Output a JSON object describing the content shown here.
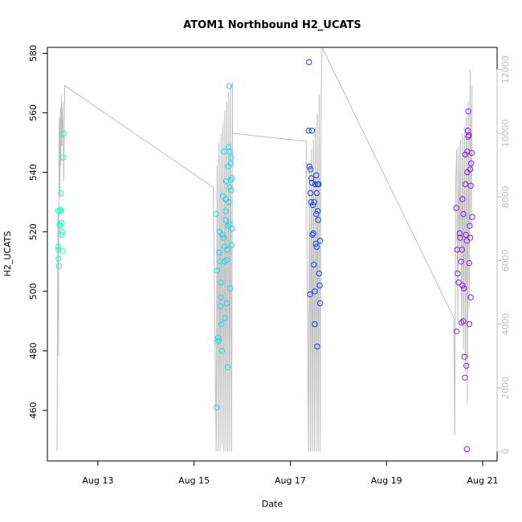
{
  "chart_data": {
    "type": "scatter",
    "title": "ATOM1 Northbound H2_UCATS",
    "xlabel": "Date",
    "ylabel": "H2_UCATS",
    "x_ticks": [
      "Aug 13",
      "Aug 15",
      "Aug 17",
      "Aug 19",
      "Aug 21"
    ],
    "x_tick_values": [
      13,
      15,
      17,
      19,
      21
    ],
    "xlim": [
      11.95,
      21.3
    ],
    "ylim": [
      443,
      582
    ],
    "y_ticks": [
      460,
      480,
      500,
      520,
      540,
      560,
      580
    ],
    "ylim_right": [
      -300,
      12700
    ],
    "y_ticks_right": [
      0,
      2000,
      4000,
      6000,
      8000,
      10000,
      12000
    ],
    "grid": false,
    "legend": "none",
    "colors": {
      "flight1": "#1affb8",
      "flight2": "#1ad7f0",
      "flight3": "#1a3ff0",
      "flight4": "#8a1af0",
      "altitude_line": "#bdbdbd",
      "frame": "#000000",
      "right_axis": "#bdbdbd"
    },
    "series": [
      {
        "color": "#1affb8",
        "points": [
          [
            12.17,
            527.0
          ],
          [
            12.18,
            514.0
          ],
          [
            12.18,
            511.0
          ],
          [
            12.19,
            508.5
          ],
          [
            12.18,
            515.0
          ],
          [
            12.2,
            522.5
          ],
          [
            12.21,
            527.0
          ],
          [
            12.22,
            522.0
          ],
          [
            12.22,
            527.5
          ],
          [
            12.23,
            533.0
          ],
          [
            12.24,
            527.0
          ],
          [
            12.25,
            519.0
          ],
          [
            12.25,
            523.0
          ],
          [
            12.26,
            520.0
          ],
          [
            12.27,
            513.5
          ],
          [
            12.28,
            545.0
          ],
          [
            12.29,
            553.0
          ]
        ]
      },
      {
        "color": "#1ad7f0",
        "points": [
          [
            15.46,
            526.0
          ],
          [
            15.47,
            461.0
          ],
          [
            15.48,
            507.0
          ],
          [
            15.49,
            483.0
          ],
          [
            15.5,
            484.5
          ],
          [
            15.51,
            483.5
          ],
          [
            15.52,
            513.0
          ],
          [
            15.53,
            520.0
          ],
          [
            15.54,
            510.0
          ],
          [
            15.55,
            495.0
          ],
          [
            15.56,
            498.0
          ],
          [
            15.56,
            503.0
          ],
          [
            15.57,
            489.0
          ],
          [
            15.58,
            480.0
          ],
          [
            15.59,
            519.0
          ],
          [
            15.6,
            532.0
          ],
          [
            15.61,
            518.0
          ],
          [
            15.62,
            547.0
          ],
          [
            15.63,
            510.0
          ],
          [
            15.64,
            491.0
          ],
          [
            15.64,
            515.0
          ],
          [
            15.65,
            524.0
          ],
          [
            15.66,
            531.0
          ],
          [
            15.66,
            527.0
          ],
          [
            15.67,
            537.0
          ],
          [
            15.68,
            496.0
          ],
          [
            15.68,
            510.5
          ],
          [
            15.69,
            514.0
          ],
          [
            15.7,
            474.5
          ],
          [
            15.7,
            522.0
          ],
          [
            15.71,
            542.0
          ],
          [
            15.72,
            548.5
          ],
          [
            15.72,
            530.0
          ],
          [
            15.73,
            569.0
          ],
          [
            15.73,
            535.0
          ],
          [
            15.74,
            522.5
          ],
          [
            15.74,
            547.0
          ],
          [
            15.75,
            501.0
          ],
          [
            15.76,
            537.5
          ],
          [
            15.76,
            543.0
          ],
          [
            15.77,
            534.0
          ],
          [
            15.77,
            545.0
          ],
          [
            15.78,
            515.5
          ],
          [
            15.79,
            521.0
          ],
          [
            15.79,
            538.0
          ]
        ]
      },
      {
        "color": "#1a3ff0",
        "points": [
          [
            17.38,
            554.0
          ],
          [
            17.39,
            577.0
          ],
          [
            17.4,
            542.0
          ],
          [
            17.41,
            499.0
          ],
          [
            17.42,
            533.0
          ],
          [
            17.42,
            541.0
          ],
          [
            17.43,
            530.0
          ],
          [
            17.44,
            538.0
          ],
          [
            17.45,
            536.5
          ],
          [
            17.45,
            554.0
          ],
          [
            17.46,
            519.0
          ],
          [
            17.47,
            529.0
          ],
          [
            17.48,
            519.5
          ],
          [
            17.49,
            509.0
          ],
          [
            17.5,
            530.0
          ],
          [
            17.51,
            489.0
          ],
          [
            17.51,
            500.0
          ],
          [
            17.52,
            536.0
          ],
          [
            17.53,
            516.0
          ],
          [
            17.54,
            539.0
          ],
          [
            17.54,
            526.0
          ],
          [
            17.55,
            533.0
          ],
          [
            17.55,
            515.0
          ],
          [
            17.56,
            481.5
          ],
          [
            17.57,
            527.0
          ],
          [
            17.57,
            536.0
          ],
          [
            17.58,
            524.0
          ],
          [
            17.59,
            536.0
          ],
          [
            17.6,
            506.0
          ],
          [
            17.61,
            502.0
          ],
          [
            17.62,
            517.0
          ],
          [
            17.62,
            496.0
          ]
        ]
      },
      {
        "color": "#8a1af0",
        "points": [
          [
            20.45,
            528.0
          ],
          [
            20.46,
            486.5
          ],
          [
            20.47,
            514.0
          ],
          [
            20.48,
            506.0
          ],
          [
            20.5,
            503.0
          ],
          [
            20.52,
            519.5
          ],
          [
            20.53,
            518.0
          ],
          [
            20.55,
            510.0
          ],
          [
            20.56,
            489.5
          ],
          [
            20.57,
            514.0
          ],
          [
            20.58,
            531.0
          ],
          [
            20.58,
            502.0
          ],
          [
            20.6,
            526.0
          ],
          [
            20.6,
            490.0
          ],
          [
            20.61,
            501.0
          ],
          [
            20.62,
            478.0
          ],
          [
            20.63,
            471.0
          ],
          [
            20.64,
            546.0
          ],
          [
            20.64,
            536.0
          ],
          [
            20.65,
            519.0
          ],
          [
            20.66,
            475.0
          ],
          [
            20.67,
            517.0
          ],
          [
            20.68,
            547.0
          ],
          [
            20.68,
            540.0
          ],
          [
            20.69,
            554.0
          ],
          [
            20.7,
            552.0
          ],
          [
            20.7,
            560.5
          ],
          [
            20.71,
            552.5
          ],
          [
            20.72,
            509.5
          ],
          [
            20.72,
            489.0
          ],
          [
            20.73,
            522.0
          ],
          [
            20.74,
            541.0
          ],
          [
            20.74,
            518.0
          ],
          [
            20.75,
            498.0
          ],
          [
            20.75,
            535.5
          ],
          [
            20.76,
            543.0
          ],
          [
            20.77,
            546.5
          ],
          [
            20.78,
            525.0
          ],
          [
            20.67,
            447.0
          ]
        ]
      }
    ],
    "altitude_line": {
      "axis": "right",
      "points": [
        [
          12.15,
          0
        ],
        [
          12.16,
          4500
        ],
        [
          12.17,
          7500
        ],
        [
          12.18,
          3000
        ],
        [
          12.19,
          9500
        ],
        [
          12.2,
          10500
        ],
        [
          12.21,
          8000
        ],
        [
          12.22,
          10800
        ],
        [
          12.23,
          9000
        ],
        [
          12.24,
          11200
        ],
        [
          12.25,
          9600
        ],
        [
          12.27,
          11000
        ],
        [
          12.29,
          8500
        ],
        [
          12.31,
          11500
        ],
        [
          15.4,
          8300
        ],
        [
          15.46,
          0
        ],
        [
          15.48,
          9000
        ],
        [
          15.5,
          0
        ],
        [
          15.52,
          9700
        ],
        [
          15.54,
          0
        ],
        [
          15.56,
          10000
        ],
        [
          15.58,
          200
        ],
        [
          15.6,
          10300
        ],
        [
          15.62,
          0
        ],
        [
          15.64,
          10700
        ],
        [
          15.66,
          0
        ],
        [
          15.68,
          11000
        ],
        [
          15.7,
          0
        ],
        [
          15.72,
          11300
        ],
        [
          15.74,
          0
        ],
        [
          15.76,
          11500
        ],
        [
          15.78,
          0
        ],
        [
          15.8,
          11600
        ],
        [
          15.8,
          10000
        ],
        [
          17.33,
          9750
        ],
        [
          17.38,
          0
        ],
        [
          17.4,
          9000
        ],
        [
          17.42,
          0
        ],
        [
          17.44,
          9500
        ],
        [
          17.46,
          0
        ],
        [
          17.48,
          9800
        ],
        [
          17.5,
          0
        ],
        [
          17.52,
          10200
        ],
        [
          17.54,
          0
        ],
        [
          17.56,
          10600
        ],
        [
          17.58,
          0
        ],
        [
          17.6,
          11200
        ],
        [
          17.62,
          0
        ],
        [
          17.64,
          11000
        ],
        [
          17.66,
          12700
        ],
        [
          20.4,
          4200
        ],
        [
          20.42,
          500
        ],
        [
          20.44,
          8500
        ],
        [
          20.46,
          9500
        ],
        [
          20.48,
          4000
        ],
        [
          20.5,
          9600
        ],
        [
          20.52,
          6000
        ],
        [
          20.54,
          9800
        ],
        [
          20.56,
          4000
        ],
        [
          20.58,
          10000
        ],
        [
          20.6,
          3200
        ],
        [
          20.62,
          10200
        ],
        [
          20.64,
          2500
        ],
        [
          20.66,
          10500
        ],
        [
          20.68,
          1500
        ],
        [
          20.7,
          11000
        ],
        [
          20.72,
          4500
        ],
        [
          20.74,
          12000
        ],
        [
          20.76,
          7000
        ],
        [
          20.78,
          11500
        ]
      ]
    }
  }
}
